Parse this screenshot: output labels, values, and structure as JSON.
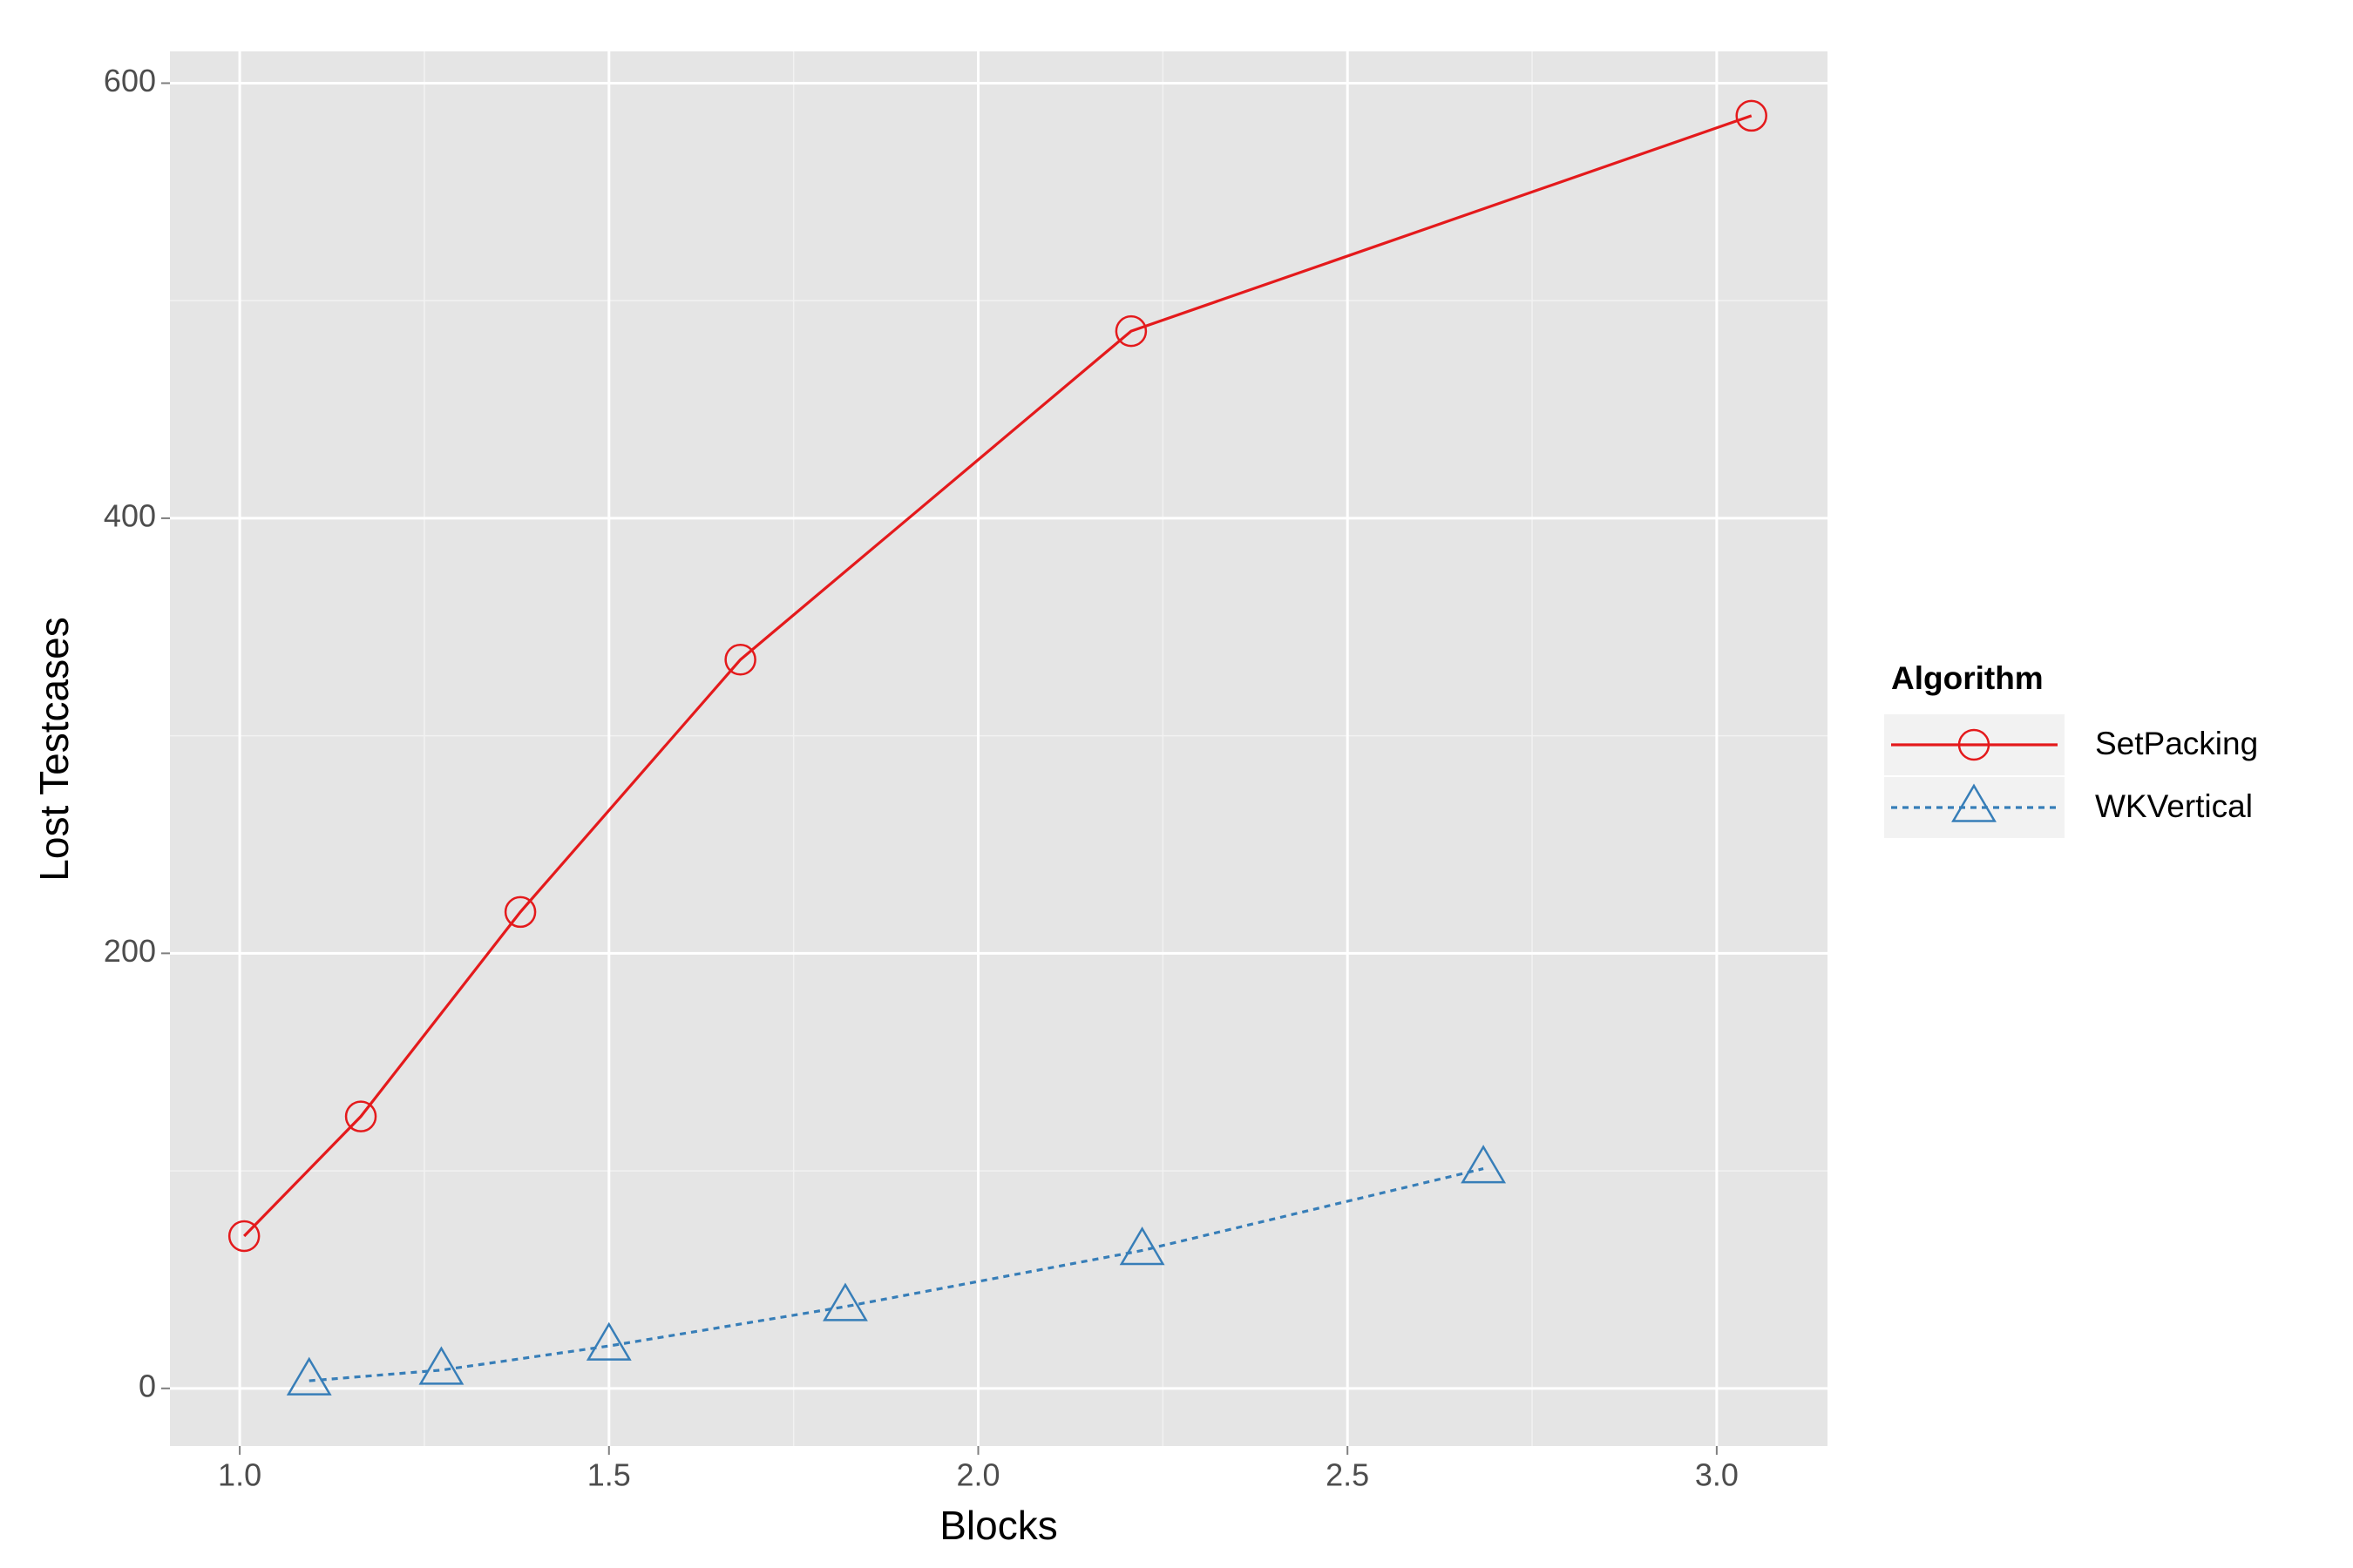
{
  "chart_data": {
    "type": "line",
    "x_label": "Blocks",
    "y_label": "Lost Testcases",
    "legend_title": "Algorithm",
    "legend_position": "right",
    "grid": true,
    "xlim": [
      0.9055,
      3.15
    ],
    "xticks": [
      {
        "value": 1,
        "label": "1.0"
      },
      1.5,
      {
        "value": 2,
        "label": "2.0"
      },
      2.5,
      {
        "value": 3,
        "label": "3.0"
      }
    ],
    "ylim": [
      -26.5,
      614.6
    ],
    "yticks": [
      0,
      200,
      400,
      600
    ],
    "series": [
      {
        "name": "SetPacking",
        "color": "#e41a1c",
        "marker": "circle",
        "linestyle": "solid",
        "x": [
          1.006,
          1.164,
          1.38,
          1.678,
          2.207,
          3.047
        ],
        "values": [
          70,
          125,
          219,
          335,
          486,
          585
        ]
      },
      {
        "name": "WKVertical",
        "color": "#377eb8",
        "marker": "triangle",
        "linestyle": "dotted",
        "x": [
          1.094,
          1.273,
          1.5,
          1.82,
          2.222,
          2.684
        ],
        "values": [
          3.5,
          8.4,
          19.5,
          37.6,
          63.4,
          101
        ]
      }
    ]
  }
}
